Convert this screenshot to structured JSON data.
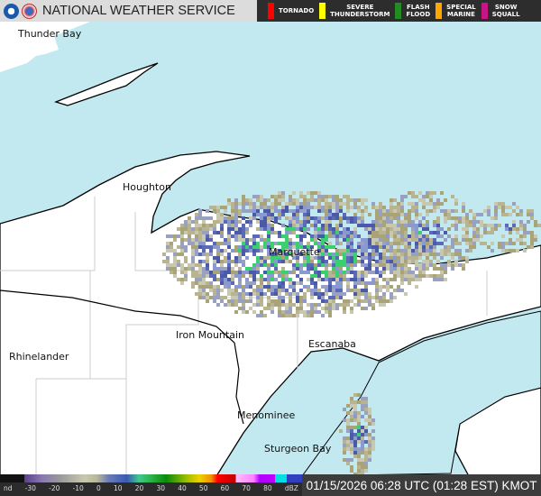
{
  "header": {
    "title": "NATIONAL WEATHER SERVICE",
    "warnings": [
      {
        "label": "TORNADO",
        "color": "#ff0000"
      },
      {
        "label": "SEVERE\nTHUNDERSTORM",
        "color": "#ffff00"
      },
      {
        "label": "FLASH\nFLOOD",
        "color": "#228b22"
      },
      {
        "label": "SPECIAL\nMARINE",
        "color": "#ffa500"
      },
      {
        "label": "SNOW\nSQUALL",
        "color": "#c71585"
      }
    ]
  },
  "cities": [
    "Thunder Bay",
    "Houghton",
    "Marquette",
    "Iron Mountain",
    "Rhinelander",
    "Escanaba",
    "Menominee",
    "Sturgeon Bay"
  ],
  "legend": {
    "ticks": [
      "nd",
      "-30",
      "-20",
      "-10",
      "0",
      "10",
      "20",
      "30",
      "40",
      "50",
      "60",
      "70",
      "80",
      "dBZ"
    ]
  },
  "timestamp": "01/15/2026 06:28 UTC (01:28 EST) KMOT",
  "colors": {
    "water": "#c2e9f0",
    "land": "#ffffff"
  }
}
